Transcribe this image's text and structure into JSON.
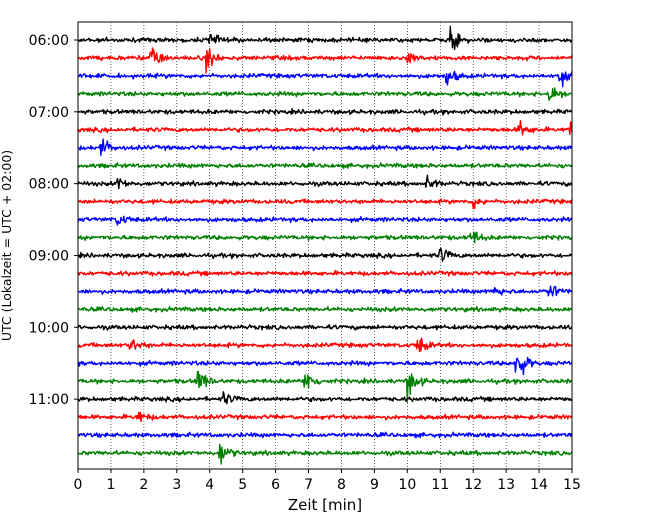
{
  "chart_data": {
    "type": "line",
    "title": "",
    "xlabel": "Zeit  [min]",
    "ylabel": "UTC (Lokalzeit = UTC + 02:00)",
    "xlim": [
      0,
      15
    ],
    "x_ticks": [
      "0",
      "1",
      "2",
      "3",
      "4",
      "5",
      "6",
      "7",
      "8",
      "9",
      "10",
      "11",
      "12",
      "13",
      "14",
      "15"
    ],
    "y_tick_labels": [
      "06:00",
      "07:00",
      "08:00",
      "09:00",
      "10:00",
      "11:00"
    ],
    "grid": {
      "x": true,
      "y": false,
      "style": "dotted"
    },
    "trace_start_utc": "06:00",
    "trace_end_utc": "11:45",
    "minutes_per_trace": 15,
    "trace_colors": [
      "#000000",
      "#ff0000",
      "#0000ff",
      "#008000"
    ],
    "events": [
      {
        "trace": 0,
        "minute": 11.3,
        "amplitude": 0.8
      },
      {
        "trace": 0,
        "minute": 4.0,
        "amplitude": 0.45
      },
      {
        "trace": 1,
        "minute": 2.2,
        "amplitude": 0.9
      },
      {
        "trace": 1,
        "minute": 3.9,
        "amplitude": 0.8
      },
      {
        "trace": 1,
        "minute": 10.0,
        "amplitude": 0.4
      },
      {
        "trace": 2,
        "minute": 11.2,
        "amplitude": 0.6
      },
      {
        "trace": 2,
        "minute": 14.6,
        "amplitude": 0.6
      },
      {
        "trace": 3,
        "minute": 14.3,
        "amplitude": 0.7
      },
      {
        "trace": 5,
        "minute": 13.4,
        "amplitude": 0.5
      },
      {
        "trace": 5,
        "minute": 14.9,
        "amplitude": 0.6
      },
      {
        "trace": 6,
        "minute": 0.7,
        "amplitude": 0.6
      },
      {
        "trace": 8,
        "minute": 1.2,
        "amplitude": 0.4
      },
      {
        "trace": 8,
        "minute": 10.6,
        "amplitude": 0.4
      },
      {
        "trace": 9,
        "minute": 12.0,
        "amplitude": 0.35
      },
      {
        "trace": 10,
        "minute": 1.2,
        "amplitude": 0.4
      },
      {
        "trace": 11,
        "minute": 11.9,
        "amplitude": 0.6
      },
      {
        "trace": 12,
        "minute": 11.0,
        "amplitude": 0.5
      },
      {
        "trace": 14,
        "minute": 12.6,
        "amplitude": 0.35
      },
      {
        "trace": 14,
        "minute": 14.3,
        "amplitude": 0.55
      },
      {
        "trace": 17,
        "minute": 1.6,
        "amplitude": 0.45
      },
      {
        "trace": 17,
        "minute": 10.3,
        "amplitude": 0.6
      },
      {
        "trace": 18,
        "minute": 13.3,
        "amplitude": 1.5
      },
      {
        "trace": 19,
        "minute": 3.6,
        "amplitude": 1.0
      },
      {
        "trace": 19,
        "minute": 6.9,
        "amplitude": 0.9
      },
      {
        "trace": 19,
        "minute": 10.0,
        "amplitude": 1.0
      },
      {
        "trace": 20,
        "minute": 4.4,
        "amplitude": 0.4
      },
      {
        "trace": 21,
        "minute": 1.8,
        "amplitude": 0.4
      },
      {
        "trace": 23,
        "minute": 4.3,
        "amplitude": 0.8
      }
    ]
  }
}
